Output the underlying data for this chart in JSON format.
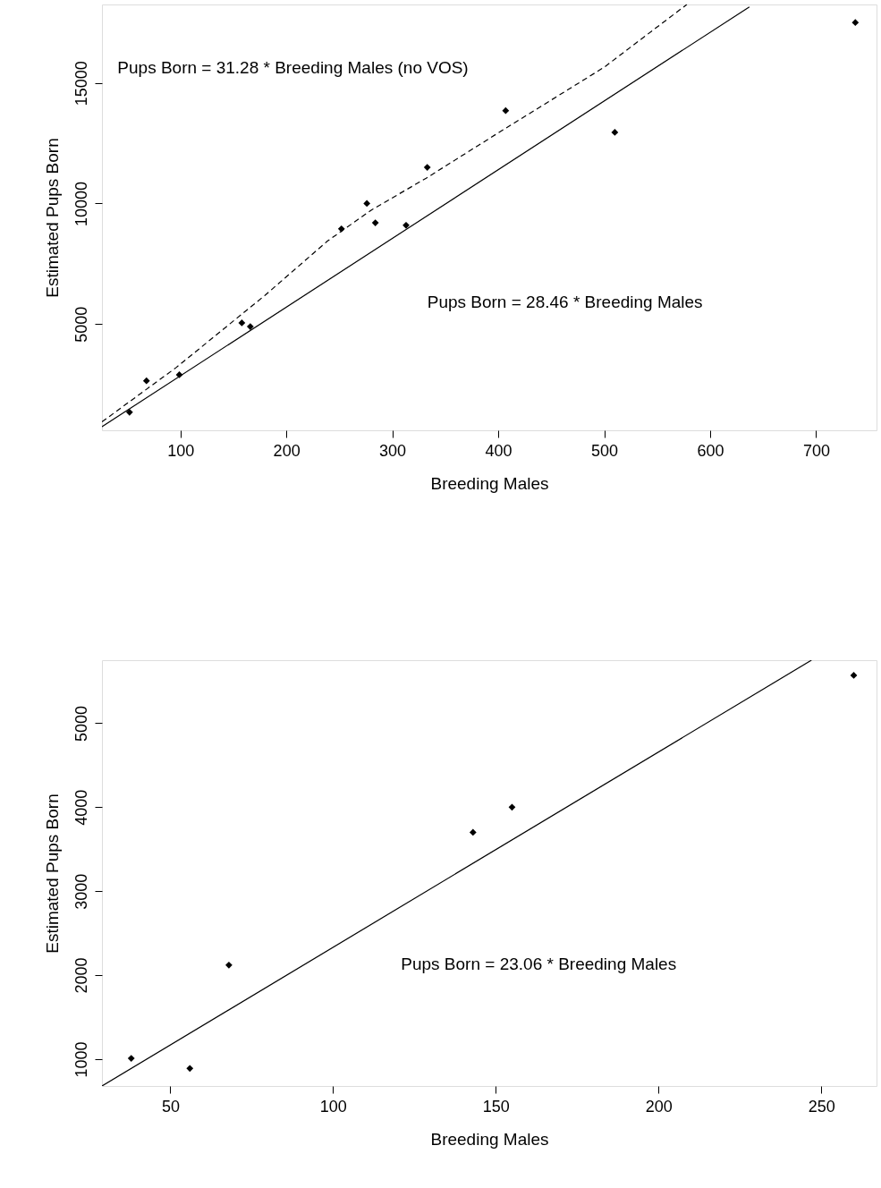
{
  "chart_data": [
    {
      "type": "scatter",
      "xlabel": "Breeding Males",
      "ylabel": "Estimated Pups Born",
      "xlim": [
        26,
        757
      ],
      "ylim": [
        600,
        18250
      ],
      "xticks": [
        100,
        200,
        300,
        400,
        500,
        600,
        700
      ],
      "yticks": [
        5000,
        10000,
        15000
      ],
      "grid": false,
      "marker": "diamond",
      "annotations": [
        "Pups Born = 31.28 * Breeding Males (no VOS)",
        "Pups Born = 28.46 * Breeding Males"
      ],
      "series": [
        {
          "type": "scatter",
          "color": "#000000",
          "x": [
            52,
            68,
            99,
            158,
            166,
            252,
            276,
            284,
            313,
            333,
            407,
            510,
            737
          ],
          "values": [
            1350,
            2650,
            2900,
            5050,
            4900,
            8950,
            10000,
            9200,
            9100,
            11500,
            13850,
            12950,
            17500
          ]
        },
        {
          "type": "line",
          "color": "#000000",
          "line_style": "solid",
          "marker": "none",
          "x": [
            26,
            637
          ],
          "values": [
            750,
            18150
          ]
        },
        {
          "type": "line",
          "color": "#000000",
          "line_style": "dashed",
          "marker": "none",
          "x": [
            26,
            96,
            180,
            239,
            281,
            332,
            399,
            500,
            578
          ],
          "values": [
            950,
            3200,
            6200,
            8450,
            9750,
            11050,
            12900,
            15650,
            18250
          ]
        }
      ]
    },
    {
      "type": "scatter",
      "xlabel": "Breeding Males",
      "ylabel": "Estimated Pups Born",
      "xlim": [
        29,
        267
      ],
      "ylim": [
        680,
        5750
      ],
      "xticks": [
        50,
        100,
        150,
        200,
        250
      ],
      "yticks": [
        1000,
        2000,
        3000,
        4000,
        5000
      ],
      "grid": false,
      "marker": "diamond",
      "annotations": [
        "Pups Born = 23.06 * Breeding Males"
      ],
      "series": [
        {
          "type": "scatter",
          "color": "#000000",
          "x": [
            38,
            56,
            68,
            143,
            155,
            260
          ],
          "values": [
            1010,
            890,
            2120,
            3700,
            4000,
            5570
          ]
        },
        {
          "type": "line",
          "color": "#000000",
          "line_style": "solid",
          "marker": "none",
          "x": [
            29,
            247
          ],
          "values": [
            680,
            5750
          ]
        }
      ]
    }
  ]
}
